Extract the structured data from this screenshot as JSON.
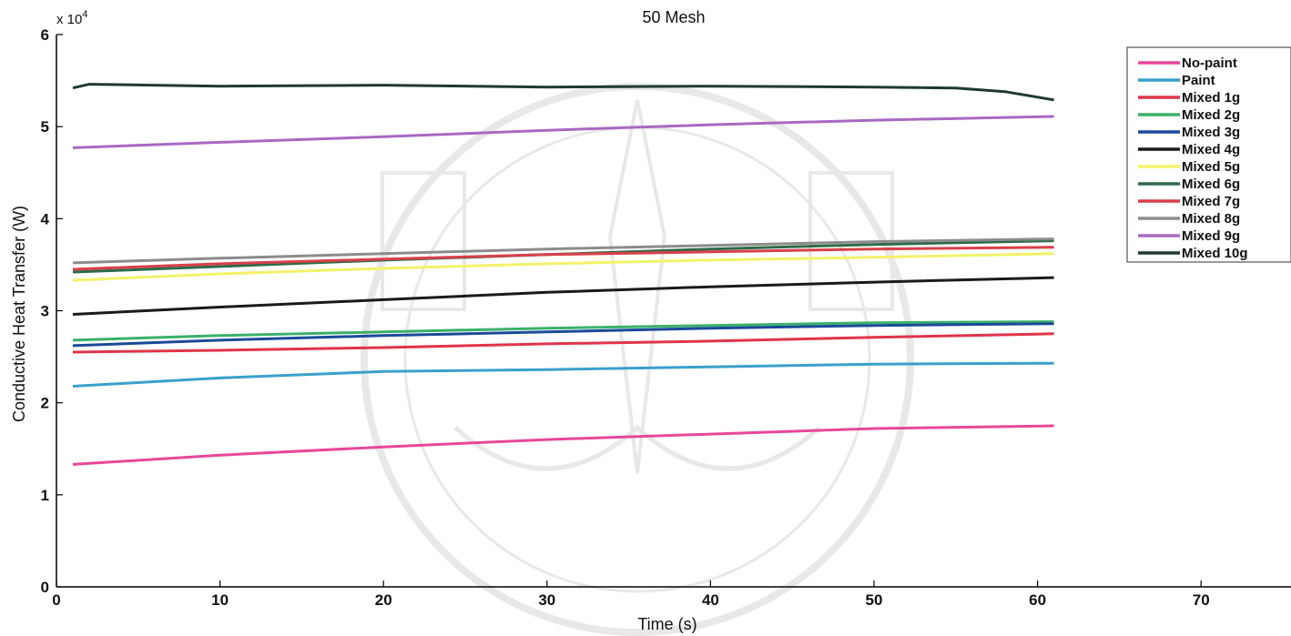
{
  "chart_data": {
    "type": "line",
    "title": "50 Mesh",
    "xlabel": "Time (s)",
    "ylabel": "Conductive Heat Transfer (W)",
    "y_exponent_label": "x 10",
    "y_exponent_power": "4",
    "xlim": [
      0,
      75
    ],
    "ylim": [
      0,
      6
    ],
    "xticks": [
      0,
      10,
      20,
      30,
      40,
      50,
      60,
      70
    ],
    "yticks": [
      0,
      1,
      2,
      3,
      4,
      5,
      6
    ],
    "grid": false,
    "legend_position": "top-right",
    "series": [
      {
        "name": "No-paint",
        "color": "#e8479a",
        "x": [
          1,
          10,
          20,
          30,
          40,
          50,
          61
        ],
        "y": [
          1.33,
          1.43,
          1.52,
          1.6,
          1.66,
          1.72,
          1.75
        ]
      },
      {
        "name": "Paint",
        "color": "#3aa0cc",
        "x": [
          1,
          10,
          20,
          30,
          40,
          50,
          61
        ],
        "y": [
          2.18,
          2.27,
          2.34,
          2.36,
          2.39,
          2.42,
          2.43
        ]
      },
      {
        "name": "Mixed 1g",
        "color": "#e0344a",
        "x": [
          1,
          10,
          20,
          30,
          40,
          50,
          61
        ],
        "y": [
          2.55,
          2.57,
          2.6,
          2.64,
          2.67,
          2.71,
          2.75
        ]
      },
      {
        "name": "Mixed 2g",
        "color": "#3ab06a",
        "x": [
          1,
          10,
          20,
          30,
          40,
          50,
          61
        ],
        "y": [
          2.68,
          2.73,
          2.77,
          2.81,
          2.84,
          2.87,
          2.88
        ]
      },
      {
        "name": "Mixed 3g",
        "color": "#1a4a9a",
        "x": [
          1,
          10,
          20,
          30,
          40,
          50,
          61
        ],
        "y": [
          2.62,
          2.68,
          2.73,
          2.77,
          2.81,
          2.84,
          2.86
        ]
      },
      {
        "name": "Mixed 4g",
        "color": "#1a1a1a",
        "x": [
          1,
          10,
          20,
          30,
          40,
          50,
          61
        ],
        "y": [
          2.96,
          3.04,
          3.12,
          3.2,
          3.26,
          3.31,
          3.36
        ]
      },
      {
        "name": "Mixed 5g",
        "color": "#f2f26a",
        "x": [
          1,
          10,
          20,
          30,
          40,
          50,
          61
        ],
        "y": [
          3.33,
          3.4,
          3.46,
          3.51,
          3.55,
          3.58,
          3.62
        ]
      },
      {
        "name": "Mixed 6g",
        "color": "#2e6b4a",
        "x": [
          1,
          10,
          20,
          30,
          40,
          50,
          61
        ],
        "y": [
          3.42,
          3.48,
          3.55,
          3.61,
          3.67,
          3.72,
          3.76
        ]
      },
      {
        "name": "Mixed 7g",
        "color": "#d9404a",
        "x": [
          1,
          10,
          20,
          30,
          40,
          50,
          61
        ],
        "y": [
          3.45,
          3.51,
          3.56,
          3.61,
          3.64,
          3.67,
          3.69
        ]
      },
      {
        "name": "Mixed 8g",
        "color": "#8c8c8c",
        "x": [
          1,
          10,
          20,
          30,
          40,
          50,
          61
        ],
        "y": [
          3.52,
          3.57,
          3.62,
          3.67,
          3.71,
          3.75,
          3.78
        ]
      },
      {
        "name": "Mixed 9g",
        "color": "#a968c2",
        "x": [
          1,
          10,
          20,
          30,
          40,
          50,
          61
        ],
        "y": [
          4.77,
          4.83,
          4.89,
          4.96,
          5.02,
          5.07,
          5.11
        ]
      },
      {
        "name": "Mixed 10g",
        "color": "#1f3a2e",
        "x": [
          1,
          2,
          10,
          20,
          30,
          40,
          50,
          55,
          58,
          61
        ],
        "y": [
          5.42,
          5.46,
          5.44,
          5.45,
          5.43,
          5.44,
          5.43,
          5.42,
          5.38,
          5.29
        ]
      }
    ]
  }
}
